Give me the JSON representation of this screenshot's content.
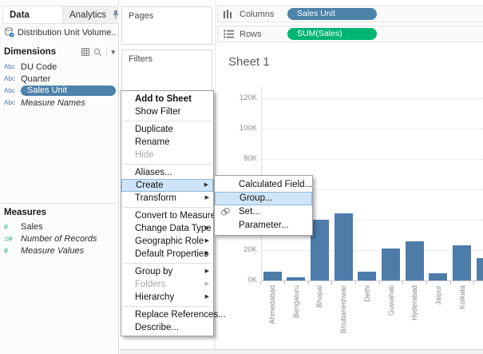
{
  "colors": {
    "pill_blue": "#4d82aa",
    "pill_green": "#00b573",
    "bar_blue": "#4d7ca9",
    "menu_highlight_bg": "#cfe5f7",
    "menu_highlight_border": "#8ab8e0",
    "abc_icon": "#4c79a8",
    "number_icon": "#06a37c"
  },
  "left_pane": {
    "tab_data": "Data",
    "tab_analytics": "Analytics",
    "pin_icon": "pin-icon",
    "datasource": "Distribution Unit Volume...",
    "dimensions_header": "Dimensions",
    "dimension_fields": [
      {
        "icon": "Abc",
        "label": "DU Code"
      },
      {
        "icon": "Abc",
        "label": "Quarter"
      },
      {
        "icon": "Abc",
        "label": "Sales Unit",
        "selected": true
      },
      {
        "icon": "Abc",
        "label": "Measure Names",
        "italic": true
      }
    ],
    "measures_header": "Measures",
    "measure_fields": [
      {
        "icon": "#",
        "label": "Sales"
      },
      {
        "icon": "=#",
        "label": "Number of Records",
        "italic": true
      },
      {
        "icon": "#",
        "label": "Measure Values",
        "italic": true
      }
    ]
  },
  "cards": {
    "pages_label": "Pages",
    "filters_label": "Filters"
  },
  "shelves": {
    "columns_label": "Columns",
    "columns_pill": "Sales Unit",
    "rows_label": "Rows",
    "rows_pill": "SUM(Sales)"
  },
  "sheet": {
    "title": "Sheet 1"
  },
  "context_menu": {
    "items": [
      {
        "label": "Add to Sheet",
        "bold": true
      },
      {
        "label": "Show Filter"
      },
      {
        "sep": true
      },
      {
        "label": "Duplicate"
      },
      {
        "label": "Rename"
      },
      {
        "label": "Hide",
        "disabled": true
      },
      {
        "sep": true
      },
      {
        "label": "Aliases..."
      },
      {
        "label": "Create",
        "arrow": true,
        "highlight": true
      },
      {
        "label": "Transform",
        "arrow": true
      },
      {
        "sep": true
      },
      {
        "label": "Convert to Measure"
      },
      {
        "label": "Change Data Type",
        "arrow": true
      },
      {
        "label": "Geographic Role",
        "arrow": true
      },
      {
        "label": "Default Properties",
        "arrow": true
      },
      {
        "sep": true
      },
      {
        "label": "Group by",
        "arrow": true
      },
      {
        "label": "Folders",
        "arrow": true,
        "disabled": true
      },
      {
        "label": "Hierarchy",
        "arrow": true
      },
      {
        "sep": true
      },
      {
        "label": "Replace References..."
      },
      {
        "label": "Describe..."
      }
    ]
  },
  "create_submenu": {
    "items": [
      {
        "label": "Calculated Field..."
      },
      {
        "label": "Group...",
        "highlight": true
      },
      {
        "label": "Set...",
        "icon": "set-icon"
      },
      {
        "label": "Parameter..."
      }
    ]
  },
  "chart_data": {
    "type": "bar",
    "title": "Sheet 1",
    "x_field": "Sales Unit",
    "series_name": "SUM(Sales)",
    "categories": [
      "Ahmedabad",
      "Bengaluru",
      "Bhopal",
      "Bhubaneshwar",
      "Delhi",
      "Guwahati",
      "Hyderabad",
      "Jaipur",
      "Kolkata",
      ""
    ],
    "values": [
      6000,
      2000,
      40000,
      44000,
      6000,
      21000,
      26000,
      5000,
      23000,
      15000
    ],
    "y_ticks": [
      "120K",
      "100K",
      "80K",
      "60K",
      "40K",
      "20K",
      "0K"
    ],
    "ylim": [
      0,
      130000
    ],
    "grid": "horizontal dotted",
    "legend": "none",
    "note": "last bar is clipped at the right edge of the view; bottoms of Bhopal/Bhubaneshwar bars are covered by the Create submenu"
  }
}
